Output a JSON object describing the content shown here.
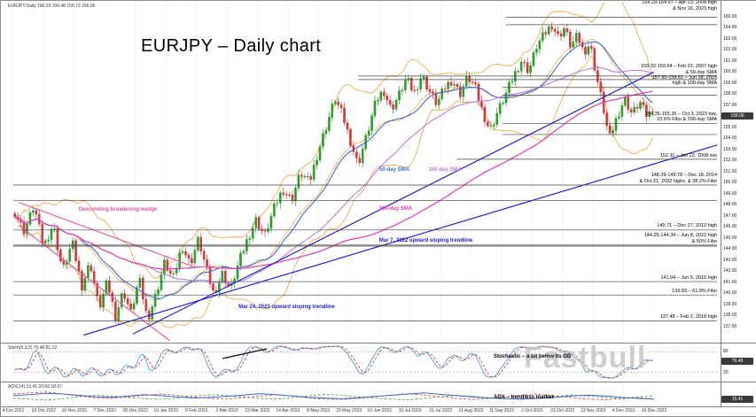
{
  "window": {
    "info_bar": "EURJPY,Daily  156.23 156.48 155.73 156.06"
  },
  "title": "EURJPY – Daily chart",
  "watermark": "Fastbull",
  "colors": {
    "up_candle": "#2e9e2e",
    "down_candle": "#d23b3b",
    "sma50": "#3b6fd4",
    "sma100": "#bb7fd8",
    "sma200": "#e23db8",
    "bollinger": "#e8a23c",
    "trendline": "#2222cc",
    "wedge": "#e0559e",
    "level_line": "#444444",
    "stoch_k": "#5aa7d8",
    "stoch_d": "#d04040",
    "adx": "#4666c8",
    "plus_di": "#3c9e3c",
    "minus_di": "#d04040"
  },
  "chart_data": {
    "type": "candlestick",
    "instrument": "EURJPY",
    "timeframe": "Daily",
    "title": "EURJPY – Daily chart",
    "price_axis": {
      "min": 136.0,
      "max": 165.8,
      "step": 1.0
    },
    "num_candles": 210,
    "price_waypoints": [
      [
        0.0,
        147.3
      ],
      [
        0.015,
        145.6
      ],
      [
        0.03,
        147.9
      ],
      [
        0.045,
        144.2
      ],
      [
        0.06,
        146.2
      ],
      [
        0.075,
        142.0
      ],
      [
        0.09,
        144.6
      ],
      [
        0.105,
        140.6
      ],
      [
        0.118,
        142.8
      ],
      [
        0.132,
        138.6
      ],
      [
        0.145,
        141.0
      ],
      [
        0.158,
        137.9
      ],
      [
        0.17,
        140.2
      ],
      [
        0.182,
        138.2
      ],
      [
        0.195,
        141.3
      ],
      [
        0.208,
        137.6
      ],
      [
        0.222,
        140.0
      ],
      [
        0.235,
        142.8
      ],
      [
        0.248,
        141.2
      ],
      [
        0.262,
        144.3
      ],
      [
        0.275,
        142.6
      ],
      [
        0.288,
        144.9
      ],
      [
        0.3,
        142.2
      ],
      [
        0.312,
        139.9
      ],
      [
        0.325,
        141.8
      ],
      [
        0.338,
        140.3
      ],
      [
        0.352,
        142.9
      ],
      [
        0.365,
        144.9
      ],
      [
        0.378,
        146.6
      ],
      [
        0.392,
        145.2
      ],
      [
        0.406,
        147.6
      ],
      [
        0.42,
        149.4
      ],
      [
        0.434,
        148.4
      ],
      [
        0.448,
        150.9
      ],
      [
        0.462,
        150.0
      ],
      [
        0.476,
        152.9
      ],
      [
        0.49,
        155.4
      ],
      [
        0.502,
        157.6
      ],
      [
        0.514,
        156.1
      ],
      [
        0.526,
        153.8
      ],
      [
        0.538,
        151.6
      ],
      [
        0.552,
        154.3
      ],
      [
        0.566,
        157.3
      ],
      [
        0.578,
        158.4
      ],
      [
        0.59,
        156.6
      ],
      [
        0.602,
        157.9
      ],
      [
        0.614,
        159.4
      ],
      [
        0.626,
        158.1
      ],
      [
        0.638,
        159.7
      ],
      [
        0.65,
        158.3
      ],
      [
        0.662,
        157.1
      ],
      [
        0.674,
        158.6
      ],
      [
        0.686,
        159.3
      ],
      [
        0.698,
        158.0
      ],
      [
        0.71,
        159.6
      ],
      [
        0.722,
        158.6
      ],
      [
        0.734,
        156.3
      ],
      [
        0.745,
        154.7
      ],
      [
        0.757,
        156.4
      ],
      [
        0.77,
        158.0
      ],
      [
        0.782,
        159.6
      ],
      [
        0.794,
        161.0
      ],
      [
        0.806,
        160.1
      ],
      [
        0.818,
        162.3
      ],
      [
        0.83,
        163.4
      ],
      [
        0.842,
        164.3
      ],
      [
        0.852,
        163.2
      ],
      [
        0.862,
        164.0
      ],
      [
        0.872,
        162.3
      ],
      [
        0.882,
        163.3
      ],
      [
        0.892,
        161.8
      ],
      [
        0.902,
        162.6
      ],
      [
        0.912,
        159.6
      ],
      [
        0.922,
        157.0
      ],
      [
        0.932,
        153.9
      ],
      [
        0.944,
        155.9
      ],
      [
        0.956,
        157.6
      ],
      [
        0.968,
        156.2
      ],
      [
        0.98,
        157.3
      ],
      [
        0.99,
        156.1
      ],
      [
        1.0,
        156.4
      ]
    ],
    "levels": [
      {
        "price": 164.97,
        "from": 0.7
      },
      {
        "price": 164.29,
        "from": 0.7
      },
      {
        "price": 159.64,
        "from": 0.49
      },
      {
        "price": 159.32,
        "from": 0.49
      },
      {
        "price": 158.61,
        "from": 0.695
      },
      {
        "price": 157.9,
        "from": 0.695
      },
      {
        "price": 155.35,
        "from": 0.695
      },
      {
        "price": 154.35,
        "from": 0.695
      },
      {
        "price": 152.11,
        "from": 0.63
      },
      {
        "price": 149.78,
        "from": 0.0
      },
      {
        "price": 148.39,
        "from": 0.0
      },
      {
        "price": 145.71,
        "from": 0.0
      },
      {
        "price": 144.34,
        "from": 0.0
      },
      {
        "price": 144.25,
        "from": 0.0
      },
      {
        "price": 141.04,
        "from": 0.0
      },
      {
        "price": 139.83,
        "from": 0.0
      },
      {
        "price": 137.48,
        "from": 0.0
      }
    ],
    "trendlines": [
      {
        "name": "mar7-2022-upward-trendline",
        "x1": 0.1,
        "p1": 136.2,
        "x2": 1.0,
        "p2": 153.4
      },
      {
        "name": "mar24-2023-upward-trendline",
        "x1": 0.17,
        "p1": 136.3,
        "x2": 0.91,
        "p2": 160.0
      }
    ],
    "wedge_lines": [
      {
        "x1": 0.008,
        "p1": 148.2,
        "x2": 0.26,
        "p2": 142.3
      },
      {
        "x1": 0.008,
        "p1": 146.1,
        "x2": 0.245,
        "p2": 134.6
      }
    ],
    "x_dates": [
      "4 Oct 2022",
      "26 Oct 2022",
      "16 Nov 2022",
      "7 Dec 2022",
      "28 Dec 2022",
      "19 Jan 2023",
      "9 Feb 2023",
      "2 Mar 2023",
      "23 Mar 2023",
      "14 Apr 2023",
      "8 May 2023",
      "29 May 2023",
      "19 Jun 2023",
      "10 Jul 2023",
      "31 Jul 2023",
      "21 Aug 2023",
      "11 Sep 2023",
      "2 Oct 2023",
      "23 Oct 2023",
      "13 Nov 2023",
      "4 Dec 2023",
      "26 Dec 2023"
    ],
    "stochastic": {
      "label": "Stoch(5,3,3) 76.48 81.12",
      "levels": [
        20,
        80
      ]
    },
    "adx": {
      "label": "ADX(14) 15.41 20.66 18.97",
      "range": [
        0,
        60
      ],
      "adx": [
        25,
        28,
        32,
        30,
        26,
        22,
        20,
        24,
        28,
        25,
        21,
        18,
        20,
        23,
        27,
        31,
        28,
        24,
        20,
        18,
        16,
        19,
        23,
        26,
        30,
        33,
        29,
        25,
        21,
        18,
        16,
        15,
        17,
        20,
        24,
        27,
        24,
        20,
        17,
        15
      ],
      "plus_di": [
        18,
        15,
        12,
        16,
        22,
        26,
        24,
        20,
        16,
        14,
        18,
        24,
        28,
        25,
        21,
        17,
        15,
        19,
        25,
        29,
        26,
        22,
        18,
        15,
        13,
        17,
        22,
        26,
        23,
        19,
        16,
        14,
        18,
        23,
        27,
        24,
        20,
        17,
        21,
        24
      ],
      "minus_di": [
        30,
        33,
        36,
        30,
        24,
        19,
        17,
        21,
        26,
        30,
        26,
        21,
        17,
        15,
        19,
        24,
        28,
        24,
        18,
        15,
        14,
        17,
        22,
        27,
        31,
        27,
        22,
        17,
        14,
        17,
        21,
        26,
        29,
        24,
        19,
        15,
        13,
        16,
        19,
        16
      ]
    },
    "current_price": "156.06",
    "stoch_tag": "76.48",
    "adx_tag": "15.41"
  },
  "inchart_labels": [
    {
      "text": "Descending broadening wedge",
      "color_ref": "wedge",
      "x": 0.093,
      "price": 147.3
    },
    {
      "text": "50-day SMA",
      "color_ref": "sma50",
      "x": 0.52,
      "price": 150.9
    },
    {
      "text": "100-day SMA",
      "color_ref": "sma100",
      "x": 0.59,
      "price": 150.9
    },
    {
      "text": "200-day SMA",
      "color_ref": "sma200",
      "x": 0.52,
      "price": 147.4
    },
    {
      "text": "Mar 7, 2022 upward sloping trendline",
      "color_ref": "trendline",
      "x": 0.52,
      "price": 144.5
    },
    {
      "text": "Mar 24, 2023 upward sloping trendline",
      "color_ref": "trendline",
      "x": 0.32,
      "price": 138.5
    }
  ],
  "right_annotations": [
    {
      "price": 165.4,
      "lines": [
        "164.29-164.97 – Apr 23, 2008 high",
        "& Nov 16, 2023 high"
      ]
    },
    {
      "price": 159.64,
      "lines": [
        "159.32-159.64 – Feb 22, 2007 high",
        "& 50-day SMA"
      ]
    },
    {
      "price": 158.61,
      "lines": [
        "157.90-158.61 – Jun 28, 2023",
        "high & 100-day SMA"
      ]
    },
    {
      "price": 155.35,
      "lines": [
        "154.35-155.35 – Oct 3, 2023 low,",
        "23.6% Fibo & 200-day SMA"
      ]
    },
    {
      "price": 152.11,
      "lines": [
        "152.11 – Jan 22, 2008 low"
      ]
    },
    {
      "price": 149.78,
      "lines": [
        "148.39-149.78 – Dec 18, 2014",
        "& Oct 21, 2022 highs, & 38.2% Fibo"
      ]
    },
    {
      "price": 145.71,
      "lines": [
        "145.71 – Dec 27, 2013 high"
      ]
    },
    {
      "price": 144.34,
      "lines": [
        "144.25-144.34 – Jun 8, 2022 high",
        "& 50% Fibo"
      ]
    },
    {
      "price": 141.04,
      "lines": [
        "141.04 – Jun 5, 2015 high"
      ]
    },
    {
      "price": 139.83,
      "lines": [
        "139.83 – 61.8% Fibo"
      ]
    },
    {
      "price": 137.48,
      "lines": [
        "137.48 – Feb 2, 2018 high"
      ]
    }
  ],
  "panel_notes": [
    {
      "panel": "stoch",
      "text": "Stochastic – a bit below its OB"
    },
    {
      "panel": "adx",
      "text": "ADX – trendless market"
    }
  ]
}
